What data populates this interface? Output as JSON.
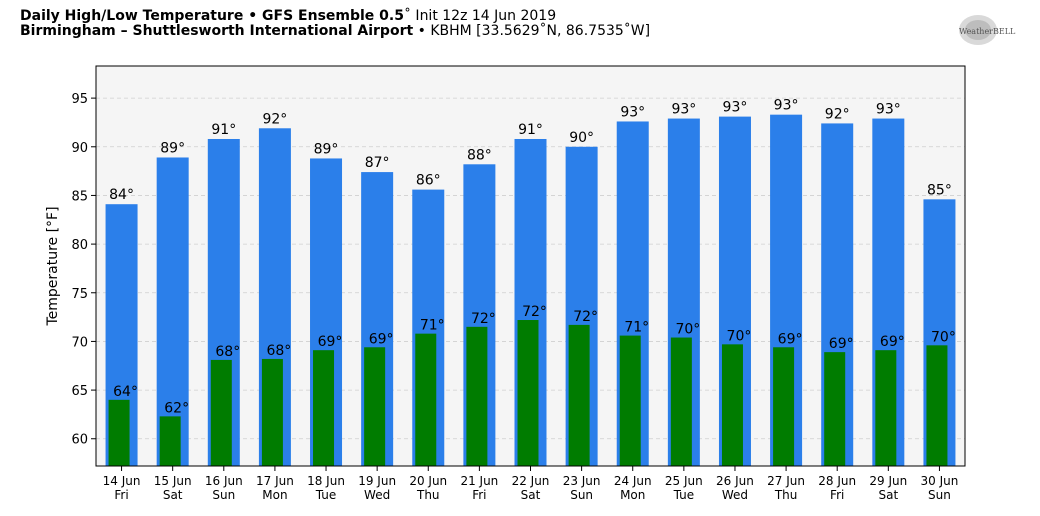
{
  "header": {
    "title_bold": "Daily High/Low Temperature • GFS Ensemble 0.5",
    "title_degree": "˚",
    "title_init": " Init 12z 14 Jun 2019",
    "location_bold": "Birmingham – Shuttlesworth International Airport",
    "location_rest": " • KBHM [33.5629˚N, 86.7535˚W]",
    "logo_text": "WeatherBELL"
  },
  "chart_data": {
    "type": "bar",
    "ylabel": "Temperature [°F]",
    "ylim": [
      57.2,
      98.3
    ],
    "yticks": [
      60,
      65,
      70,
      75,
      80,
      85,
      90,
      95
    ],
    "grid": true,
    "categories": [
      {
        "date": "14 Jun",
        "day": "Fri"
      },
      {
        "date": "15 Jun",
        "day": "Sat"
      },
      {
        "date": "16 Jun",
        "day": "Sun"
      },
      {
        "date": "17 Jun",
        "day": "Mon"
      },
      {
        "date": "18 Jun",
        "day": "Tue"
      },
      {
        "date": "19 Jun",
        "day": "Wed"
      },
      {
        "date": "20 Jun",
        "day": "Thu"
      },
      {
        "date": "21 Jun",
        "day": "Fri"
      },
      {
        "date": "22 Jun",
        "day": "Sat"
      },
      {
        "date": "23 Jun",
        "day": "Sun"
      },
      {
        "date": "24 Jun",
        "day": "Mon"
      },
      {
        "date": "25 Jun",
        "day": "Tue"
      },
      {
        "date": "26 Jun",
        "day": "Wed"
      },
      {
        "date": "27 Jun",
        "day": "Thu"
      },
      {
        "date": "28 Jun",
        "day": "Fri"
      },
      {
        "date": "29 Jun",
        "day": "Sat"
      },
      {
        "date": "30 Jun",
        "day": "Sun"
      }
    ],
    "series": [
      {
        "name": "High",
        "color": "#2b7fea",
        "values": [
          84.1,
          88.9,
          90.8,
          91.9,
          88.8,
          87.4,
          85.6,
          88.2,
          90.8,
          90.0,
          92.6,
          92.9,
          93.1,
          93.3,
          92.4,
          92.9,
          84.6
        ],
        "labels": [
          "84°",
          "89°",
          "91°",
          "92°",
          "89°",
          "87°",
          "86°",
          "88°",
          "91°",
          "90°",
          "93°",
          "93°",
          "93°",
          "93°",
          "92°",
          "93°",
          "85°"
        ]
      },
      {
        "name": "Low",
        "color": "#007c00",
        "values": [
          64.0,
          62.3,
          68.1,
          68.2,
          69.1,
          69.4,
          70.8,
          71.5,
          72.2,
          71.7,
          70.6,
          70.4,
          69.7,
          69.4,
          68.9,
          69.1,
          69.6
        ],
        "labels": [
          "64°",
          "62°",
          "68°",
          "68°",
          "69°",
          "69°",
          "71°",
          "72°",
          "72°",
          "72°",
          "71°",
          "70°",
          "70°",
          "69°",
          "69°",
          "69°",
          "70°"
        ]
      }
    ]
  }
}
